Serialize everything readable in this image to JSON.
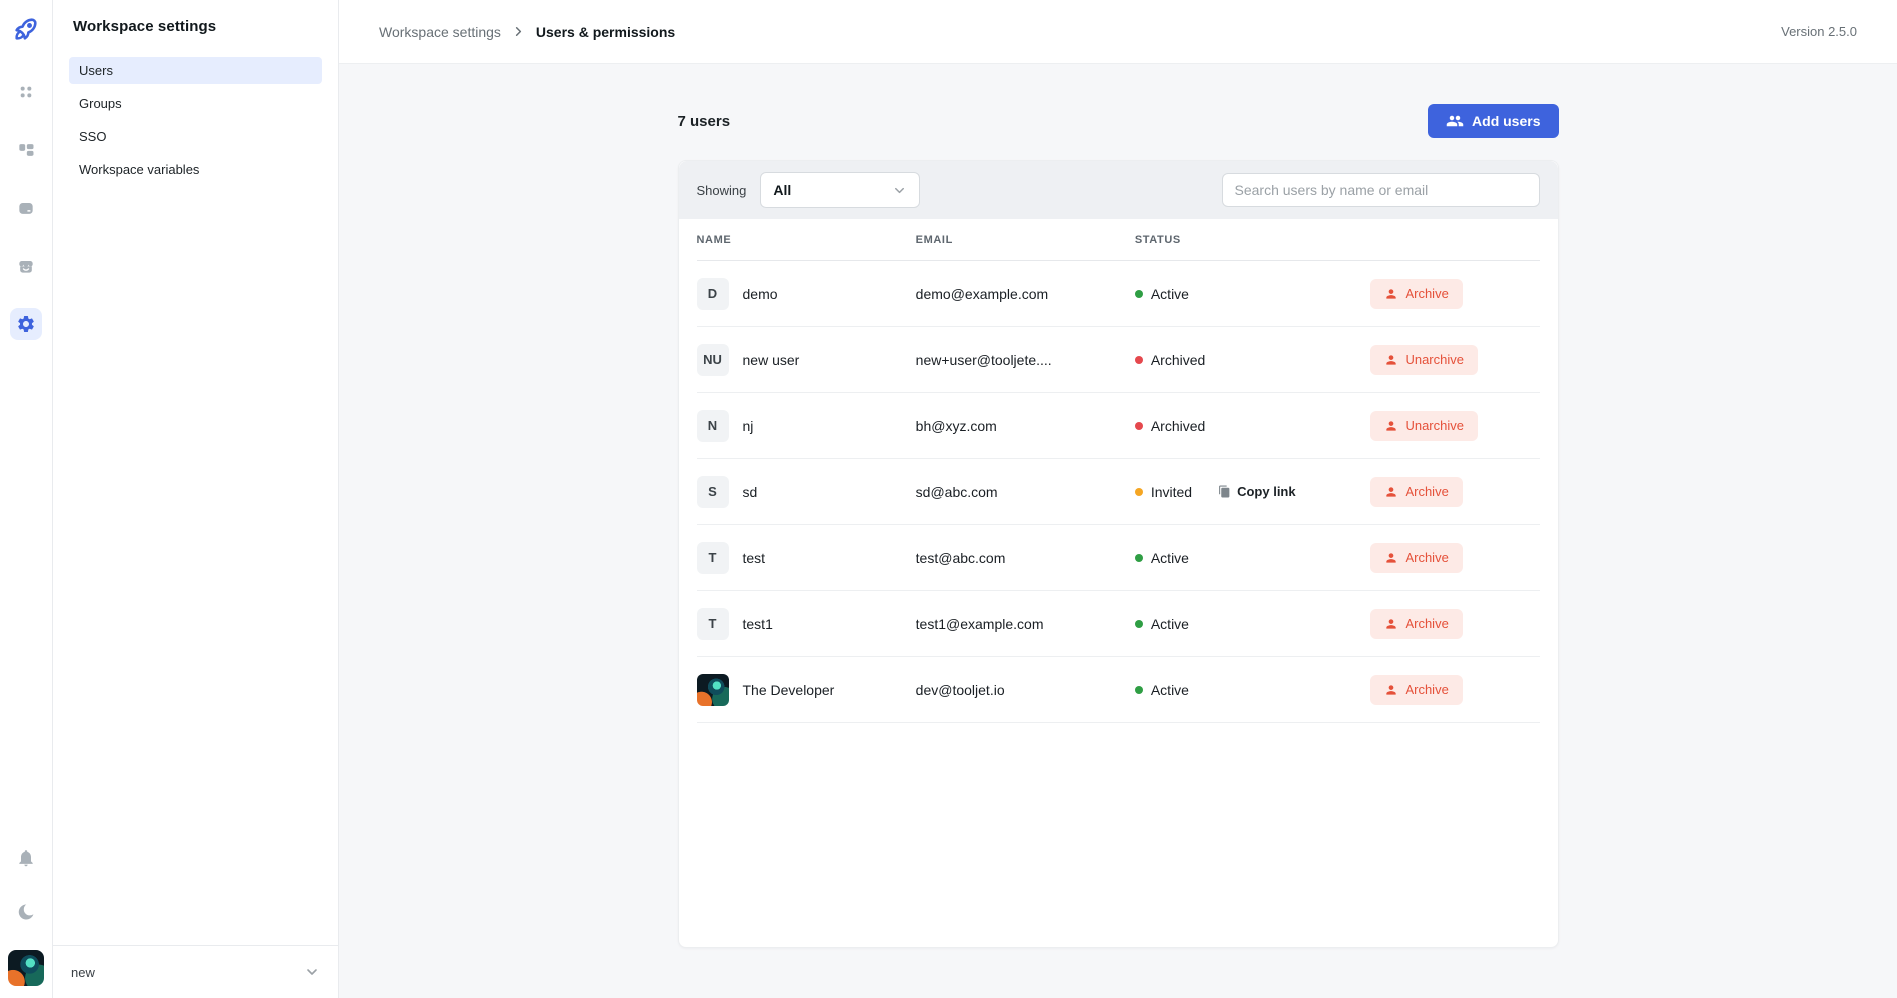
{
  "app": {
    "version_label": "Version 2.5.0",
    "colors": {
      "accent_blue": "#3E63DD",
      "accent_blue_light": "#E6EDFE",
      "status_active": "#2F9E44",
      "status_archived": "#E5484D",
      "status_invited": "#F5A623",
      "danger_button_bg": "#FDEAE6",
      "danger_button_text": "#E5513A"
    }
  },
  "rail": {
    "icons": [
      "rocket-logo-icon",
      "apps-grid-icon",
      "database-icon",
      "datasources-icon",
      "marketplace-icon",
      "settings-gear-icon",
      "notifications-bell-icon",
      "dark-mode-moon-icon",
      "user-avatar"
    ]
  },
  "sidebar": {
    "title": "Workspace settings",
    "items": [
      {
        "label": "Users",
        "active": true
      },
      {
        "label": "Groups",
        "active": false
      },
      {
        "label": "SSO",
        "active": false
      },
      {
        "label": "Workspace variables",
        "active": false
      }
    ],
    "workspace": {
      "name": "new"
    }
  },
  "breadcrumb": {
    "root": "Workspace settings",
    "current": "Users & permissions"
  },
  "users_page": {
    "count_label": "7 users",
    "add_button_label": "Add users",
    "filter": {
      "label": "Showing",
      "selected_value": "All"
    },
    "search": {
      "placeholder": "Search users by name or email"
    },
    "table": {
      "headers": [
        "NAME",
        "EMAIL",
        "STATUS"
      ],
      "rows": [
        {
          "initials": "D",
          "avatar": false,
          "name": "demo",
          "email": "demo@example.com",
          "status": "Active",
          "status_color": "green",
          "action": "Archive"
        },
        {
          "initials": "NU",
          "avatar": false,
          "name": "new user",
          "email": "new+user@tooljete....",
          "status": "Archived",
          "status_color": "red",
          "action": "Unarchive"
        },
        {
          "initials": "N",
          "avatar": false,
          "name": "nj",
          "email": "bh@xyz.com",
          "status": "Archived",
          "status_color": "red",
          "action": "Unarchive"
        },
        {
          "initials": "S",
          "avatar": false,
          "name": "sd",
          "email": "sd@abc.com",
          "status": "Invited",
          "status_color": "orange",
          "action": "Archive",
          "copy_link": "Copy link"
        },
        {
          "initials": "T",
          "avatar": false,
          "name": "test",
          "email": "test@abc.com",
          "status": "Active",
          "status_color": "green",
          "action": "Archive"
        },
        {
          "initials": "T",
          "avatar": false,
          "name": "test1",
          "email": "test1@example.com",
          "status": "Active",
          "status_color": "green",
          "action": "Archive"
        },
        {
          "initials": "",
          "avatar": true,
          "name": "The Developer",
          "email": "dev@tooljet.io",
          "status": "Active",
          "status_color": "green",
          "action": "Archive"
        }
      ]
    }
  }
}
